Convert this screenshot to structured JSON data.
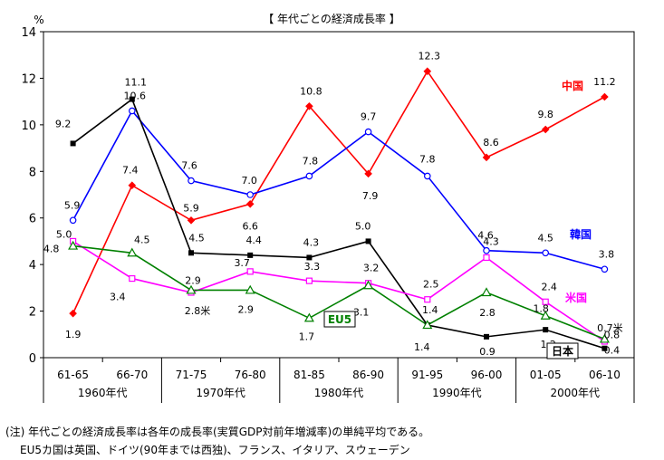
{
  "chart_data": {
    "type": "line",
    "title": "【 年代ごとの経済成長率 】",
    "ylabel": "%",
    "ylim": [
      0,
      14
    ],
    "yticks": [
      "0",
      "2",
      "4",
      "6",
      "8",
      "10",
      "12",
      "14"
    ],
    "grid": false,
    "categories": [
      "61-65",
      "66-70",
      "71-75",
      "76-80",
      "81-85",
      "86-90",
      "91-95",
      "96-00",
      "01-05",
      "06-10"
    ],
    "decades": [
      "1960年代",
      "1970年代",
      "1980年代",
      "1990年代",
      "2000年代"
    ],
    "series": [
      {
        "name": "中国",
        "color": "#ff0000",
        "marker": "diamond",
        "values": [
          1.9,
          7.4,
          5.9,
          6.6,
          10.8,
          7.9,
          12.3,
          8.6,
          9.8,
          11.2
        ],
        "labels": [
          "1.9",
          "7.4",
          "5.9",
          "6.6",
          "10.8",
          "7.9",
          "12.3",
          "8.6",
          "9.8",
          "11.2"
        ]
      },
      {
        "name": "韓国",
        "color": "#0000ff",
        "marker": "circle-open",
        "values": [
          5.9,
          10.6,
          7.6,
          7.0,
          7.8,
          9.7,
          7.8,
          4.6,
          4.5,
          3.8
        ],
        "labels": [
          "5.9",
          "10.6",
          "7.6",
          "7.0",
          "7.8",
          "9.7",
          "7.8",
          "4.6",
          "4.5",
          "3.8"
        ]
      },
      {
        "name": "日本",
        "color": "#000000",
        "marker": "square",
        "values": [
          9.2,
          11.1,
          4.5,
          4.4,
          4.3,
          5.0,
          1.4,
          0.9,
          1.2,
          0.4
        ],
        "labels": [
          "9.2",
          "11.1",
          "4.5",
          "4.4",
          "4.3",
          "5.0",
          "1.4",
          "0.9",
          "1.2",
          "0.4"
        ]
      },
      {
        "name": "米国",
        "color": "#ff00ff",
        "marker": "square-open",
        "values": [
          5.0,
          3.4,
          2.8,
          3.7,
          3.3,
          3.2,
          2.5,
          4.3,
          2.4,
          0.7
        ],
        "labels": [
          "5.0",
          "3.4",
          "2.8米",
          "3.7",
          "3.3",
          "3.2",
          "2.5",
          "4.3",
          "2.4",
          "0.7米"
        ]
      },
      {
        "name": "EU5",
        "color": "#008000",
        "marker": "triangle-open",
        "values": [
          4.8,
          4.5,
          2.9,
          2.9,
          1.7,
          3.1,
          1.4,
          2.8,
          1.8,
          0.8
        ],
        "labels": [
          "4.8",
          "4.5",
          "2.9",
          "2.9",
          "1.7",
          "3.1",
          "1.4",
          "2.8",
          "1.8",
          "0.8"
        ]
      }
    ]
  },
  "notes": {
    "line1": "(注) 年代ごとの経済成長率は各年の成長率(実質GDP対前年増減率)の単純平均である。",
    "line2": "EU5カ国は英国、ドイツ(90年までは西独)、フランス、イタリア、スウェーデン"
  }
}
